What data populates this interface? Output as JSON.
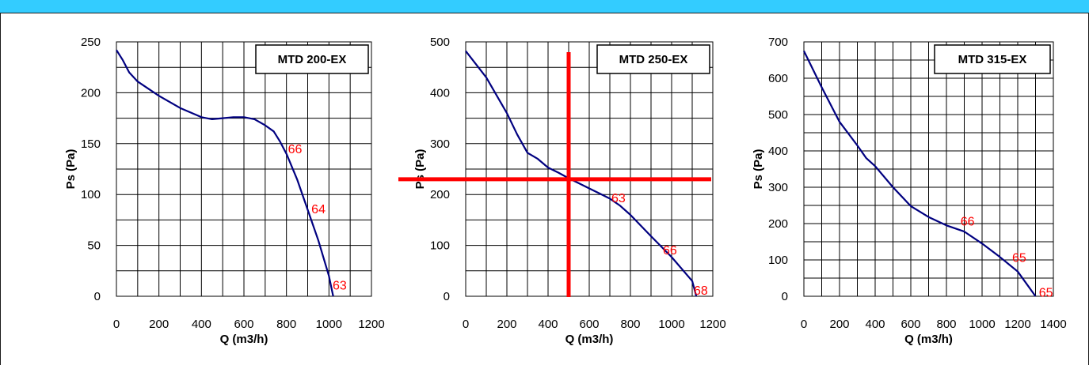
{
  "header": {
    "bar_color": "#33ccff"
  },
  "chart_data": [
    {
      "type": "line",
      "title": "MTD 200-EX",
      "xlabel": "Q (m3/h)",
      "ylabel": "Ps (Pa)",
      "xlim": [
        0,
        1200
      ],
      "ylim": [
        0,
        250
      ],
      "x_ticks": [
        0,
        200,
        400,
        600,
        800,
        1000,
        1200
      ],
      "y_ticks": [
        0,
        50,
        100,
        150,
        200,
        250
      ],
      "grid": true,
      "line_color": "#000080",
      "series": [
        {
          "x": [
            0,
            30,
            60,
            100,
            200,
            300,
            400,
            450,
            500,
            550,
            600,
            650,
            700,
            740,
            770,
            800,
            850,
            900,
            950,
            1000,
            1020
          ],
          "y": [
            242,
            232,
            220,
            211,
            197,
            185,
            176,
            174,
            175,
            176,
            176,
            174,
            168,
            162,
            152,
            140,
            115,
            85,
            55,
            20,
            0
          ]
        }
      ],
      "annotations": [
        {
          "x": 800,
          "y": 146,
          "text": "66"
        },
        {
          "x": 910,
          "y": 87,
          "text": "64"
        },
        {
          "x": 1010,
          "y": 12,
          "text": "63"
        }
      ]
    },
    {
      "type": "line",
      "title": "MTD 250-EX",
      "xlabel": "Q (m3/h)",
      "ylabel": "Ps (Pa)",
      "xlim": [
        0,
        1200
      ],
      "ylim": [
        0,
        500
      ],
      "x_ticks": [
        0,
        200,
        400,
        600,
        800,
        1000,
        1200
      ],
      "y_ticks": [
        0,
        100,
        200,
        300,
        400,
        500
      ],
      "grid": true,
      "line_color": "#000080",
      "series": [
        {
          "x": [
            0,
            100,
            200,
            250,
            300,
            350,
            400,
            450,
            500,
            550,
            600,
            650,
            700,
            750,
            800,
            900,
            1000,
            1100,
            1120
          ],
          "y": [
            482,
            430,
            360,
            318,
            282,
            270,
            253,
            243,
            232,
            222,
            212,
            202,
            192,
            178,
            160,
            118,
            77,
            30,
            0
          ]
        }
      ],
      "annotations": [
        {
          "x": 700,
          "y": 196,
          "text": "63"
        },
        {
          "x": 950,
          "y": 93,
          "text": "66"
        },
        {
          "x": 1100,
          "y": 14,
          "text": "68"
        }
      ],
      "highlight_lines": {
        "color": "#ff0000",
        "x": 500,
        "y": 230
      }
    },
    {
      "type": "line",
      "title": "MTD 315-EX",
      "xlabel": "Q (m3/h)",
      "ylabel": "Ps (Pa)",
      "xlim": [
        0,
        1400
      ],
      "ylim": [
        0,
        700
      ],
      "x_ticks": [
        0,
        200,
        400,
        600,
        800,
        1000,
        1200,
        1400
      ],
      "y_ticks": [
        0,
        100,
        200,
        300,
        400,
        500,
        600,
        700
      ],
      "grid": true,
      "line_color": "#000080",
      "series": [
        {
          "x": [
            0,
            100,
            200,
            300,
            350,
            400,
            500,
            600,
            700,
            800,
            900,
            1000,
            1100,
            1200,
            1300
          ],
          "y": [
            675,
            575,
            480,
            415,
            380,
            358,
            300,
            248,
            218,
            195,
            178,
            145,
            108,
            68,
            0
          ]
        }
      ],
      "annotations": [
        {
          "x": 870,
          "y": 210,
          "text": "66"
        },
        {
          "x": 1160,
          "y": 110,
          "text": "65"
        },
        {
          "x": 1310,
          "y": 14,
          "text": "65"
        }
      ]
    }
  ]
}
